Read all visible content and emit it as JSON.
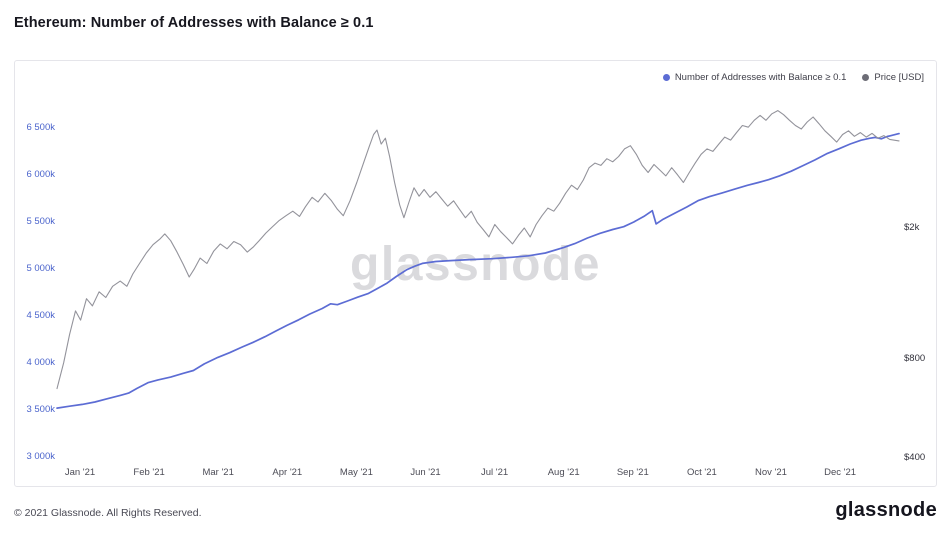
{
  "page": {
    "title": "Ethereum: Number of Addresses with Balance ≥ 0.1",
    "watermark": "glassnode",
    "footer": {
      "copyright": "© 2021 Glassnode. All Rights Reserved.",
      "brand": "glassnode"
    }
  },
  "legend": [
    {
      "label": "Number of Addresses with Balance ≥ 0.1",
      "color": "#5c6cd4"
    },
    {
      "label": "Price [USD]",
      "color": "#6d6d76"
    }
  ],
  "chart_data": {
    "type": "line",
    "title": "Ethereum: Number of Addresses with Balance ≥ 0.1",
    "x_labels": [
      "Jan '21",
      "Feb '21",
      "Mar '21",
      "Apr '21",
      "May '21",
      "Jun '21",
      "Jul '21",
      "Aug '21",
      "Sep '21",
      "Oct '21",
      "Nov '21",
      "Dec '21"
    ],
    "left_axis": {
      "scale": "linear",
      "min": 3000,
      "max": 6500,
      "ticks": [
        {
          "label": "6 500k",
          "value": 6500
        },
        {
          "label": "6 000k",
          "value": 6000
        },
        {
          "label": "5 500k",
          "value": 5500
        },
        {
          "label": "5 000k",
          "value": 5000
        },
        {
          "label": "4 500k",
          "value": 4500
        },
        {
          "label": "4 000k",
          "value": 4000
        },
        {
          "label": "3 500k",
          "value": 3500
        },
        {
          "label": "3 000k",
          "value": 3000
        }
      ]
    },
    "right_axis": {
      "scale": "log",
      "ticks": [
        {
          "label": "$2k",
          "value": 2000
        },
        {
          "label": "$800",
          "value": 800
        },
        {
          "label": "$400",
          "value": 400
        }
      ]
    },
    "series": [
      {
        "name": "Number of Addresses with Balance ≥ 0.1",
        "axis": "left",
        "color": "#5c6cd4",
        "unit": "k",
        "points": [
          [
            0.0,
            3520
          ],
          [
            0.015,
            3540
          ],
          [
            0.03,
            3560
          ],
          [
            0.045,
            3585
          ],
          [
            0.06,
            3620
          ],
          [
            0.075,
            3655
          ],
          [
            0.085,
            3680
          ],
          [
            0.095,
            3730
          ],
          [
            0.108,
            3790
          ],
          [
            0.12,
            3820
          ],
          [
            0.135,
            3850
          ],
          [
            0.15,
            3890
          ],
          [
            0.162,
            3920
          ],
          [
            0.175,
            3990
          ],
          [
            0.191,
            4060
          ],
          [
            0.205,
            4110
          ],
          [
            0.22,
            4170
          ],
          [
            0.233,
            4220
          ],
          [
            0.247,
            4280
          ],
          [
            0.26,
            4340
          ],
          [
            0.273,
            4400
          ],
          [
            0.287,
            4460
          ],
          [
            0.3,
            4520
          ],
          [
            0.315,
            4580
          ],
          [
            0.325,
            4630
          ],
          [
            0.333,
            4620
          ],
          [
            0.345,
            4660
          ],
          [
            0.357,
            4700
          ],
          [
            0.37,
            4740
          ],
          [
            0.38,
            4790
          ],
          [
            0.392,
            4850
          ],
          [
            0.403,
            4920
          ],
          [
            0.415,
            4990
          ],
          [
            0.425,
            5030
          ],
          [
            0.434,
            5060
          ],
          [
            0.45,
            5080
          ],
          [
            0.47,
            5090
          ],
          [
            0.49,
            5100
          ],
          [
            0.517,
            5110
          ],
          [
            0.54,
            5125
          ],
          [
            0.56,
            5140
          ],
          [
            0.58,
            5170
          ],
          [
            0.602,
            5230
          ],
          [
            0.615,
            5270
          ],
          [
            0.63,
            5330
          ],
          [
            0.645,
            5380
          ],
          [
            0.66,
            5420
          ],
          [
            0.673,
            5450
          ],
          [
            0.685,
            5500
          ],
          [
            0.697,
            5560
          ],
          [
            0.707,
            5620
          ],
          [
            0.7115,
            5480
          ],
          [
            0.72,
            5530
          ],
          [
            0.733,
            5590
          ],
          [
            0.748,
            5660
          ],
          [
            0.762,
            5730
          ],
          [
            0.775,
            5770
          ],
          [
            0.79,
            5810
          ],
          [
            0.805,
            5850
          ],
          [
            0.82,
            5890
          ],
          [
            0.833,
            5920
          ],
          [
            0.845,
            5950
          ],
          [
            0.858,
            5990
          ],
          [
            0.872,
            6040
          ],
          [
            0.886,
            6100
          ],
          [
            0.9,
            6160
          ],
          [
            0.915,
            6230
          ],
          [
            0.929,
            6280
          ],
          [
            0.942,
            6330
          ],
          [
            0.955,
            6370
          ],
          [
            0.965,
            6390
          ],
          [
            0.972,
            6400
          ],
          [
            0.979,
            6385
          ],
          [
            0.986,
            6410
          ],
          [
            0.993,
            6425
          ],
          [
            1.0,
            6440
          ]
        ]
      },
      {
        "name": "Price [USD]",
        "axis": "right",
        "color": "#93939b",
        "unit": "USD",
        "points": [
          [
            0.0,
            650
          ],
          [
            0.008,
            780
          ],
          [
            0.015,
            950
          ],
          [
            0.022,
            1120
          ],
          [
            0.028,
            1050
          ],
          [
            0.035,
            1220
          ],
          [
            0.042,
            1160
          ],
          [
            0.05,
            1280
          ],
          [
            0.058,
            1230
          ],
          [
            0.066,
            1330
          ],
          [
            0.075,
            1380
          ],
          [
            0.083,
            1330
          ],
          [
            0.09,
            1450
          ],
          [
            0.098,
            1560
          ],
          [
            0.106,
            1680
          ],
          [
            0.114,
            1780
          ],
          [
            0.122,
            1850
          ],
          [
            0.128,
            1920
          ],
          [
            0.135,
            1830
          ],
          [
            0.142,
            1700
          ],
          [
            0.15,
            1550
          ],
          [
            0.157,
            1420
          ],
          [
            0.163,
            1500
          ],
          [
            0.17,
            1620
          ],
          [
            0.178,
            1560
          ],
          [
            0.186,
            1700
          ],
          [
            0.194,
            1790
          ],
          [
            0.202,
            1730
          ],
          [
            0.21,
            1820
          ],
          [
            0.218,
            1780
          ],
          [
            0.226,
            1690
          ],
          [
            0.233,
            1750
          ],
          [
            0.24,
            1830
          ],
          [
            0.248,
            1930
          ],
          [
            0.256,
            2020
          ],
          [
            0.264,
            2110
          ],
          [
            0.272,
            2180
          ],
          [
            0.28,
            2250
          ],
          [
            0.288,
            2170
          ],
          [
            0.295,
            2320
          ],
          [
            0.303,
            2480
          ],
          [
            0.31,
            2400
          ],
          [
            0.318,
            2550
          ],
          [
            0.326,
            2420
          ],
          [
            0.333,
            2280
          ],
          [
            0.34,
            2180
          ],
          [
            0.348,
            2420
          ],
          [
            0.356,
            2750
          ],
          [
            0.364,
            3150
          ],
          [
            0.371,
            3550
          ],
          [
            0.376,
            3850
          ],
          [
            0.38,
            3970
          ],
          [
            0.385,
            3600
          ],
          [
            0.39,
            3750
          ],
          [
            0.395,
            3300
          ],
          [
            0.401,
            2750
          ],
          [
            0.407,
            2350
          ],
          [
            0.412,
            2150
          ],
          [
            0.418,
            2400
          ],
          [
            0.424,
            2650
          ],
          [
            0.43,
            2500
          ],
          [
            0.436,
            2620
          ],
          [
            0.443,
            2480
          ],
          [
            0.45,
            2580
          ],
          [
            0.457,
            2450
          ],
          [
            0.464,
            2330
          ],
          [
            0.471,
            2420
          ],
          [
            0.478,
            2280
          ],
          [
            0.485,
            2150
          ],
          [
            0.492,
            2250
          ],
          [
            0.499,
            2080
          ],
          [
            0.506,
            1980
          ],
          [
            0.513,
            1880
          ],
          [
            0.52,
            2050
          ],
          [
            0.527,
            1950
          ],
          [
            0.534,
            1870
          ],
          [
            0.541,
            1790
          ],
          [
            0.548,
            1900
          ],
          [
            0.555,
            2000
          ],
          [
            0.562,
            1880
          ],
          [
            0.569,
            2050
          ],
          [
            0.576,
            2180
          ],
          [
            0.583,
            2300
          ],
          [
            0.59,
            2250
          ],
          [
            0.597,
            2380
          ],
          [
            0.604,
            2550
          ],
          [
            0.611,
            2700
          ],
          [
            0.618,
            2620
          ],
          [
            0.625,
            2800
          ],
          [
            0.632,
            3050
          ],
          [
            0.639,
            3150
          ],
          [
            0.646,
            3100
          ],
          [
            0.653,
            3250
          ],
          [
            0.66,
            3180
          ],
          [
            0.667,
            3300
          ],
          [
            0.674,
            3480
          ],
          [
            0.681,
            3560
          ],
          [
            0.688,
            3350
          ],
          [
            0.695,
            3100
          ],
          [
            0.702,
            2950
          ],
          [
            0.709,
            3120
          ],
          [
            0.716,
            3000
          ],
          [
            0.723,
            2880
          ],
          [
            0.73,
            3050
          ],
          [
            0.737,
            2900
          ],
          [
            0.744,
            2750
          ],
          [
            0.751,
            2950
          ],
          [
            0.758,
            3150
          ],
          [
            0.765,
            3350
          ],
          [
            0.772,
            3480
          ],
          [
            0.779,
            3420
          ],
          [
            0.786,
            3600
          ],
          [
            0.793,
            3780
          ],
          [
            0.8,
            3700
          ],
          [
            0.807,
            3900
          ],
          [
            0.814,
            4100
          ],
          [
            0.821,
            4050
          ],
          [
            0.828,
            4250
          ],
          [
            0.835,
            4400
          ],
          [
            0.842,
            4250
          ],
          [
            0.849,
            4450
          ],
          [
            0.856,
            4550
          ],
          [
            0.863,
            4420
          ],
          [
            0.87,
            4250
          ],
          [
            0.877,
            4100
          ],
          [
            0.884,
            4000
          ],
          [
            0.891,
            4200
          ],
          [
            0.898,
            4350
          ],
          [
            0.905,
            4150
          ],
          [
            0.912,
            3950
          ],
          [
            0.919,
            3800
          ],
          [
            0.926,
            3650
          ],
          [
            0.933,
            3850
          ],
          [
            0.94,
            3950
          ],
          [
            0.947,
            3800
          ],
          [
            0.954,
            3900
          ],
          [
            0.961,
            3780
          ],
          [
            0.968,
            3880
          ],
          [
            0.975,
            3750
          ],
          [
            0.982,
            3820
          ],
          [
            0.989,
            3720
          ],
          [
            1.0,
            3680
          ]
        ]
      }
    ]
  }
}
